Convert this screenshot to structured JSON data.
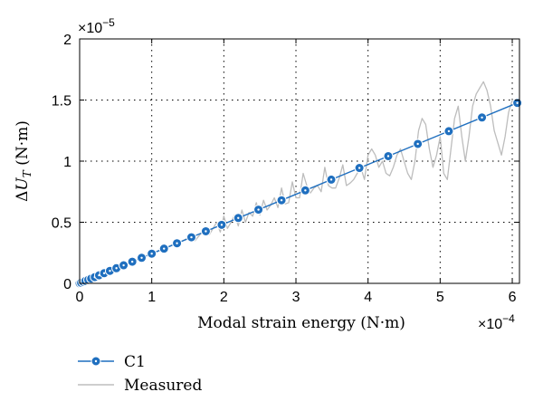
{
  "chart_data": {
    "type": "line",
    "xlabel": "Modal strain energy (N·m)",
    "ylabel_unit": " (N·m)",
    "x_exponent_base": "×10",
    "x_exponent_power": "−4",
    "y_exponent_base": "×10",
    "y_exponent_power": "−5",
    "xlim": [
      0,
      6.1
    ],
    "ylim": [
      0,
      2
    ],
    "xticks": [
      "0",
      "1",
      "2",
      "3",
      "4",
      "5",
      "6"
    ],
    "yticks": [
      "0",
      "0.5",
      "1",
      "1.5",
      "2"
    ],
    "grid": true,
    "legend_position": "bottom-left",
    "series": [
      {
        "name": "C1",
        "color": "#1f6fbf",
        "style": "line-with-circle-markers",
        "x": [
          0,
          0.02,
          0.05,
          0.08,
          0.12,
          0.16,
          0.21,
          0.27,
          0.34,
          0.42,
          0.51,
          0.61,
          0.73,
          0.86,
          1.0,
          1.17,
          1.35,
          1.55,
          1.75,
          1.97,
          2.2,
          2.48,
          2.8,
          3.13,
          3.49,
          3.88,
          4.28,
          4.69,
          5.12,
          5.58,
          6.07
        ],
        "y": [
          0,
          0.005,
          0.012,
          0.02,
          0.029,
          0.039,
          0.051,
          0.066,
          0.083,
          0.102,
          0.124,
          0.148,
          0.177,
          0.209,
          0.243,
          0.284,
          0.328,
          0.377,
          0.426,
          0.479,
          0.535,
          0.603,
          0.68,
          0.761,
          0.849,
          0.944,
          1.041,
          1.141,
          1.245,
          1.357,
          1.476
        ]
      },
      {
        "name": "Measured",
        "color": "#bdbdbd",
        "style": "line",
        "x": [
          0,
          0.1,
          0.2,
          0.3,
          0.4,
          0.5,
          0.6,
          0.7,
          0.8,
          0.9,
          1.0,
          1.1,
          1.2,
          1.3,
          1.4,
          1.5,
          1.6,
          1.7,
          1.8,
          1.85,
          1.9,
          1.95,
          2.0,
          2.05,
          2.1,
          2.15,
          2.2,
          2.25,
          2.3,
          2.35,
          2.4,
          2.45,
          2.5,
          2.55,
          2.6,
          2.65,
          2.7,
          2.75,
          2.8,
          2.85,
          2.9,
          2.95,
          3.0,
          3.05,
          3.1,
          3.15,
          3.2,
          3.25,
          3.3,
          3.35,
          3.4,
          3.45,
          3.5,
          3.55,
          3.6,
          3.65,
          3.7,
          3.75,
          3.8,
          3.85,
          3.9,
          3.95,
          4.0,
          4.05,
          4.1,
          4.15,
          4.2,
          4.25,
          4.3,
          4.35,
          4.4,
          4.45,
          4.5,
          4.55,
          4.6,
          4.65,
          4.7,
          4.75,
          4.8,
          4.85,
          4.9,
          4.95,
          5.0,
          5.05,
          5.1,
          5.15,
          5.2,
          5.25,
          5.3,
          5.35,
          5.4,
          5.45,
          5.5,
          5.55,
          5.6,
          5.65,
          5.7,
          5.75,
          5.8,
          5.85,
          5.9,
          5.95,
          6.0,
          6.05
        ],
        "y": [
          0,
          0.025,
          0.048,
          0.075,
          0.1,
          0.122,
          0.148,
          0.172,
          0.195,
          0.22,
          0.245,
          0.27,
          0.29,
          0.32,
          0.34,
          0.37,
          0.35,
          0.42,
          0.4,
          0.45,
          0.5,
          0.42,
          0.55,
          0.45,
          0.5,
          0.56,
          0.47,
          0.6,
          0.5,
          0.58,
          0.55,
          0.66,
          0.56,
          0.68,
          0.6,
          0.64,
          0.7,
          0.62,
          0.78,
          0.65,
          0.66,
          0.83,
          0.7,
          0.7,
          0.9,
          0.8,
          0.74,
          0.78,
          0.8,
          0.75,
          0.95,
          0.8,
          0.78,
          0.78,
          0.86,
          0.97,
          0.8,
          0.82,
          0.85,
          0.9,
          0.95,
          0.85,
          1.05,
          1.1,
          1.05,
          0.95,
          1.0,
          0.9,
          0.88,
          0.95,
          1.05,
          1.1,
          1.0,
          0.9,
          0.85,
          1.0,
          1.25,
          1.35,
          1.3,
          1.1,
          0.95,
          1.05,
          1.2,
          0.9,
          0.85,
          1.1,
          1.35,
          1.45,
          1.2,
          1.0,
          1.2,
          1.45,
          1.55,
          1.6,
          1.65,
          1.58,
          1.45,
          1.25,
          1.15,
          1.05,
          1.2,
          1.4,
          1.5,
          1.45
        ]
      }
    ]
  }
}
